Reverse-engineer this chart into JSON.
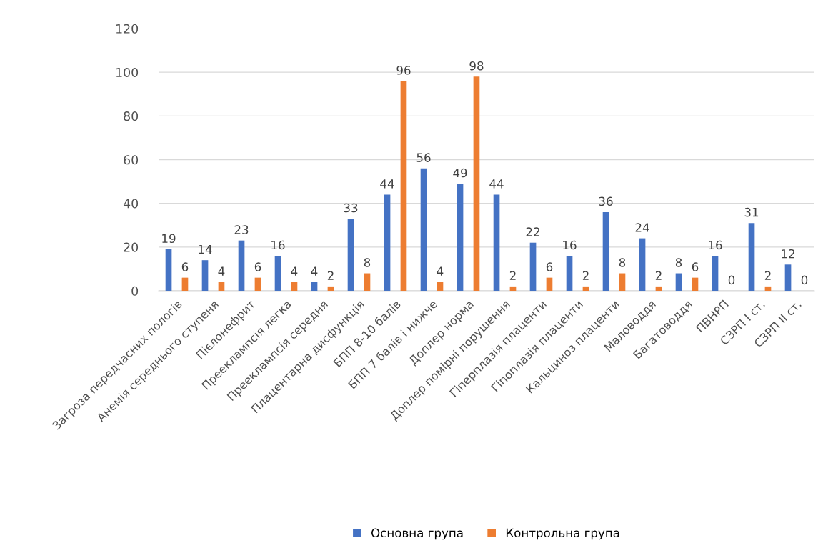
{
  "chart_data": {
    "type": "bar",
    "categories": [
      "Загроза передчасних пологів",
      "Анемія середнього ступеня",
      "Пієлонефрит",
      "Прееклампсія легка",
      "Прееклампсія середня",
      "Плацентарна дисфункція",
      "БПП 8-10 балів",
      "БПП 7 балів і нижче",
      "Доплер норма",
      "Доплер помірні порушення",
      "Гіперплазія плаценти",
      "Гіпоплазія плаценти",
      "Кальциноз плаценти",
      "Маловоддя",
      "Багатоводдя",
      "ПВНРП",
      "СЗРП І ст.",
      "СЗРП ІІ ст."
    ],
    "series": [
      {
        "name": "Основна група",
        "color": "#4472c4",
        "values": [
          19,
          14,
          23,
          16,
          4,
          33,
          44,
          56,
          49,
          44,
          22,
          16,
          36,
          24,
          8,
          16,
          31,
          12
        ]
      },
      {
        "name": "Контрольна група",
        "color": "#ed7d31",
        "values": [
          6,
          4,
          6,
          4,
          2,
          8,
          96,
          4,
          98,
          2,
          6,
          2,
          8,
          2,
          6,
          0,
          2,
          0
        ]
      }
    ],
    "ylim": [
      0,
      120
    ],
    "yticks": [
      0,
      20,
      40,
      60,
      80,
      100,
      120
    ],
    "grid": "y",
    "legend": "bottom",
    "data_labels": true
  }
}
